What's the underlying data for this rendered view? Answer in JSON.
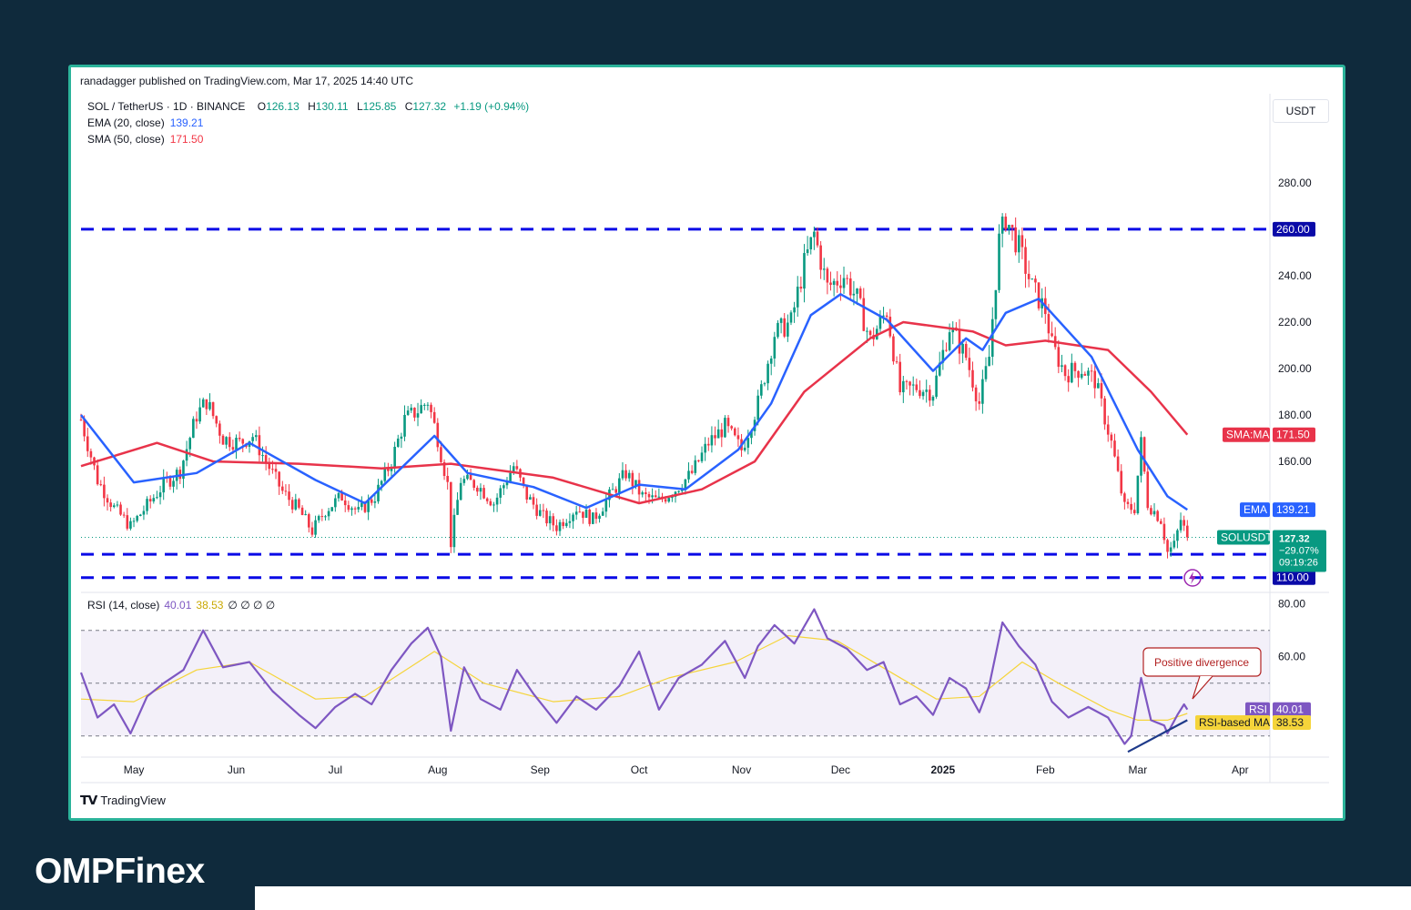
{
  "header": {
    "published": "ranadagger published on TradingView.com, Mar 17, 2025 14:40 UTC",
    "symbol": "SOL / TetherUS · 1D · BINANCE",
    "ohlc": {
      "o_label": "O",
      "o": "126.13",
      "h_label": "H",
      "h": "130.11",
      "l_label": "L",
      "l": "125.85",
      "c_label": "C",
      "c": "127.32",
      "change": "+1.19 (+0.94%)"
    },
    "ema_label": "EMA (20, close)",
    "ema_value": "139.21",
    "sma_label": "SMA (50, close)",
    "sma_value": "171.50",
    "currency": "USDT"
  },
  "rsi_legend": {
    "label": "RSI (14, close)",
    "rsi": "40.01",
    "ma": "38.53",
    "zeros": "∅ ∅ ∅ ∅"
  },
  "footer": {
    "tradingview": "TradingView",
    "brand": "OMPFinex"
  },
  "colors": {
    "up": "#089981",
    "down": "#f23645",
    "ema": "#2962ff",
    "sma": "#e8334a",
    "rsi": "#7e57c2",
    "rsi_ma": "#f5d43a",
    "level": "#0a0ae6",
    "frame": "#2bb39a",
    "background": "#0f2a3c"
  },
  "chart_data": [
    {
      "type": "candlestick",
      "title": "SOL / TetherUS · 1D · BINANCE",
      "x_labels": [
        "May",
        "Jun",
        "Jul",
        "Aug",
        "Sep",
        "Oct",
        "Nov",
        "Dec",
        "2025",
        "Feb",
        "Mar",
        "Apr"
      ],
      "x_range": [
        "2024-04-15",
        "2025-04-10"
      ],
      "y_ticks": [
        "280.00",
        "240.00",
        "220.00",
        "200.00",
        "180.00",
        "160.00"
      ],
      "ylim": [
        104,
        296
      ],
      "last_close": 127.32,
      "horizontal_levels": [
        {
          "value": 260,
          "label": "260.00"
        },
        {
          "value": 120,
          "label": "120.00"
        },
        {
          "value": 110,
          "label": "110.00"
        }
      ],
      "badges": {
        "sma": {
          "name": "SMA:MA",
          "value": "171.50"
        },
        "ema": {
          "name": "EMA",
          "value": "139.21"
        },
        "price": {
          "name": "SOLUSDT",
          "value": "127.32",
          "change": "−29.07%",
          "countdown": "09:19:26"
        }
      },
      "price_path": [
        [
          "2024-04-15",
          178
        ],
        [
          "2024-04-20",
          152
        ],
        [
          "2024-04-25",
          140
        ],
        [
          "2024-04-30",
          132
        ],
        [
          "2024-05-05",
          141
        ],
        [
          "2024-05-10",
          150
        ],
        [
          "2024-05-15",
          156
        ],
        [
          "2024-05-20",
          180
        ],
        [
          "2024-05-23",
          186
        ],
        [
          "2024-05-28",
          170
        ],
        [
          "2024-06-02",
          168
        ],
        [
          "2024-06-06",
          171
        ],
        [
          "2024-06-10",
          160
        ],
        [
          "2024-06-15",
          147
        ],
        [
          "2024-06-20",
          139
        ],
        [
          "2024-06-24",
          130
        ],
        [
          "2024-06-28",
          139
        ],
        [
          "2024-07-03",
          145
        ],
        [
          "2024-07-08",
          138
        ],
        [
          "2024-07-13",
          145
        ],
        [
          "2024-07-18",
          160
        ],
        [
          "2024-07-22",
          178
        ],
        [
          "2024-07-26",
          182
        ],
        [
          "2024-07-29",
          186
        ],
        [
          "2024-08-01",
          170
        ],
        [
          "2024-08-04",
          150
        ],
        [
          "2024-08-05",
          125
        ],
        [
          "2024-08-08",
          152
        ],
        [
          "2024-08-13",
          150
        ],
        [
          "2024-08-18",
          142
        ],
        [
          "2024-08-24",
          158
        ],
        [
          "2024-08-28",
          145
        ],
        [
          "2024-09-02",
          136
        ],
        [
          "2024-09-06",
          132
        ],
        [
          "2024-09-12",
          140
        ],
        [
          "2024-09-17",
          135
        ],
        [
          "2024-09-22",
          145
        ],
        [
          "2024-09-27",
          155
        ],
        [
          "2024-10-02",
          145
        ],
        [
          "2024-10-07",
          143
        ],
        [
          "2024-10-12",
          148
        ],
        [
          "2024-10-17",
          155
        ],
        [
          "2024-10-22",
          168
        ],
        [
          "2024-10-27",
          175
        ],
        [
          "2024-11-01",
          165
        ],
        [
          "2024-11-06",
          185
        ],
        [
          "2024-11-11",
          215
        ],
        [
          "2024-11-16",
          220
        ],
        [
          "2024-11-20",
          245
        ],
        [
          "2024-11-23",
          258
        ],
        [
          "2024-11-27",
          235
        ],
        [
          "2024-12-02",
          240
        ],
        [
          "2024-12-06",
          230
        ],
        [
          "2024-12-10",
          212
        ],
        [
          "2024-12-15",
          225
        ],
        [
          "2024-12-19",
          190
        ],
        [
          "2024-12-24",
          192
        ],
        [
          "2024-12-29",
          190
        ],
        [
          "2025-01-03",
          218
        ],
        [
          "2025-01-08",
          205
        ],
        [
          "2025-01-12",
          185
        ],
        [
          "2025-01-15",
          205
        ],
        [
          "2025-01-18",
          255
        ],
        [
          "2025-01-20",
          265
        ],
        [
          "2025-01-24",
          252
        ],
        [
          "2025-01-28",
          235
        ],
        [
          "2025-02-01",
          225
        ],
        [
          "2025-02-03",
          210
        ],
        [
          "2025-02-07",
          198
        ],
        [
          "2025-02-12",
          200
        ],
        [
          "2025-02-16",
          195
        ],
        [
          "2025-02-21",
          168
        ],
        [
          "2025-02-25",
          140
        ],
        [
          "2025-02-28",
          140
        ],
        [
          "2025-03-02",
          168
        ],
        [
          "2025-03-04",
          142
        ],
        [
          "2025-03-08",
          135
        ],
        [
          "2025-03-10",
          121
        ],
        [
          "2025-03-12",
          124
        ],
        [
          "2025-03-14",
          135
        ],
        [
          "2025-03-16",
          127.32
        ]
      ],
      "ema20_path": [
        [
          "2024-04-15",
          180
        ],
        [
          "2024-05-01",
          151
        ],
        [
          "2024-05-20",
          155
        ],
        [
          "2024-06-05",
          168
        ],
        [
          "2024-06-25",
          152
        ],
        [
          "2024-07-10",
          142
        ],
        [
          "2024-07-31",
          171
        ],
        [
          "2024-08-10",
          155
        ],
        [
          "2024-08-30",
          149
        ],
        [
          "2024-09-15",
          140
        ],
        [
          "2024-10-01",
          150
        ],
        [
          "2024-10-15",
          148
        ],
        [
          "2024-10-31",
          165
        ],
        [
          "2024-11-10",
          185
        ],
        [
          "2024-11-22",
          223
        ],
        [
          "2024-12-01",
          232
        ],
        [
          "2024-12-15",
          221
        ],
        [
          "2024-12-29",
          199
        ],
        [
          "2025-01-08",
          213
        ],
        [
          "2025-01-13",
          208
        ],
        [
          "2025-01-20",
          224
        ],
        [
          "2025-01-30",
          230
        ],
        [
          "2025-02-15",
          205
        ],
        [
          "2025-03-01",
          165
        ],
        [
          "2025-03-10",
          145
        ],
        [
          "2025-03-16",
          139.21
        ]
      ],
      "sma50_path": [
        [
          "2024-04-15",
          158
        ],
        [
          "2024-05-08",
          168
        ],
        [
          "2024-05-25",
          160
        ],
        [
          "2024-06-20",
          159
        ],
        [
          "2024-07-15",
          157
        ],
        [
          "2024-08-05",
          159
        ],
        [
          "2024-09-05",
          153
        ],
        [
          "2024-10-01",
          142
        ],
        [
          "2024-10-20",
          148
        ],
        [
          "2024-11-05",
          160
        ],
        [
          "2024-11-20",
          190
        ],
        [
          "2024-12-10",
          213
        ],
        [
          "2024-12-20",
          220
        ],
        [
          "2025-01-10",
          216
        ],
        [
          "2025-01-20",
          210
        ],
        [
          "2025-02-01",
          212
        ],
        [
          "2025-02-20",
          208
        ],
        [
          "2025-03-05",
          190
        ],
        [
          "2025-03-16",
          171.5
        ]
      ]
    },
    {
      "type": "line",
      "title": "RSI (14, close)",
      "ylim": [
        22,
        83
      ],
      "y_ticks": [
        "80.00",
        "60.00"
      ],
      "bands": {
        "upper": 70,
        "middle": 50,
        "lower": 30
      },
      "annotation": "Positive divergence",
      "badges": {
        "rsi": {
          "name": "RSI",
          "value": "40.01"
        },
        "ma": {
          "name": "RSI-based MA",
          "value": "38.53"
        }
      },
      "series": [
        {
          "name": "RSI",
          "points": [
            [
              "2024-04-15",
              54
            ],
            [
              "2024-04-20",
              37
            ],
            [
              "2024-04-25",
              42
            ],
            [
              "2024-04-30",
              31
            ],
            [
              "2024-05-05",
              45
            ],
            [
              "2024-05-10",
              50
            ],
            [
              "2024-05-16",
              55
            ],
            [
              "2024-05-22",
              70
            ],
            [
              "2024-05-28",
              56
            ],
            [
              "2024-06-05",
              58
            ],
            [
              "2024-06-12",
              47
            ],
            [
              "2024-06-20",
              38
            ],
            [
              "2024-06-25",
              33
            ],
            [
              "2024-07-01",
              41
            ],
            [
              "2024-07-07",
              46
            ],
            [
              "2024-07-12",
              42
            ],
            [
              "2024-07-18",
              55
            ],
            [
              "2024-07-24",
              65
            ],
            [
              "2024-07-29",
              71
            ],
            [
              "2024-08-02",
              60
            ],
            [
              "2024-08-05",
              32
            ],
            [
              "2024-08-09",
              56
            ],
            [
              "2024-08-14",
              44
            ],
            [
              "2024-08-20",
              40
            ],
            [
              "2024-08-25",
              55
            ],
            [
              "2024-08-30",
              46
            ],
            [
              "2024-09-06",
              35
            ],
            [
              "2024-09-12",
              45
            ],
            [
              "2024-09-18",
              40
            ],
            [
              "2024-09-25",
              49
            ],
            [
              "2024-10-01",
              62
            ],
            [
              "2024-10-07",
              40
            ],
            [
              "2024-10-13",
              52
            ],
            [
              "2024-10-20",
              57
            ],
            [
              "2024-10-27",
              66
            ],
            [
              "2024-11-02",
              52
            ],
            [
              "2024-11-06",
              64
            ],
            [
              "2024-11-11",
              72
            ],
            [
              "2024-11-17",
              65
            ],
            [
              "2024-11-23",
              78
            ],
            [
              "2024-11-27",
              67
            ],
            [
              "2024-12-03",
              63
            ],
            [
              "2024-12-09",
              55
            ],
            [
              "2024-12-14",
              58
            ],
            [
              "2024-12-19",
              42
            ],
            [
              "2024-12-24",
              45
            ],
            [
              "2024-12-29",
              38
            ],
            [
              "2025-01-03",
              52
            ],
            [
              "2025-01-08",
              48
            ],
            [
              "2025-01-12",
              39
            ],
            [
              "2025-01-15",
              49
            ],
            [
              "2025-01-19",
              73
            ],
            [
              "2025-01-24",
              64
            ],
            [
              "2025-01-29",
              57
            ],
            [
              "2025-02-03",
              43
            ],
            [
              "2025-02-08",
              37
            ],
            [
              "2025-02-14",
              41
            ],
            [
              "2025-02-20",
              37
            ],
            [
              "2025-02-25",
              27
            ],
            [
              "2025-02-27",
              30
            ],
            [
              "2025-03-02",
              52
            ],
            [
              "2025-03-05",
              36
            ],
            [
              "2025-03-09",
              34
            ],
            [
              "2025-03-10",
              31
            ],
            [
              "2025-03-13",
              38
            ],
            [
              "2025-03-15",
              42
            ],
            [
              "2025-03-16",
              40.01
            ]
          ]
        },
        {
          "name": "RSI-based MA",
          "points": [
            [
              "2024-04-15",
              44
            ],
            [
              "2024-05-01",
              43
            ],
            [
              "2024-05-20",
              55
            ],
            [
              "2024-06-05",
              58
            ],
            [
              "2024-06-25",
              44
            ],
            [
              "2024-07-10",
              45
            ],
            [
              "2024-07-31",
              62
            ],
            [
              "2024-08-15",
              50
            ],
            [
              "2024-09-05",
              43
            ],
            [
              "2024-09-25",
              45
            ],
            [
              "2024-10-10",
              52
            ],
            [
              "2024-10-30",
              58
            ],
            [
              "2024-11-15",
              68
            ],
            [
              "2024-11-30",
              66
            ],
            [
              "2024-12-15",
              55
            ],
            [
              "2024-12-30",
              44
            ],
            [
              "2025-01-12",
              45
            ],
            [
              "2025-01-25",
              58
            ],
            [
              "2025-02-05",
              50
            ],
            [
              "2025-02-20",
              40
            ],
            [
              "2025-03-01",
              36
            ],
            [
              "2025-03-10",
              36
            ],
            [
              "2025-03-16",
              38.53
            ]
          ]
        },
        {
          "name": "",
          "points": [
            [
              "2025-02-26",
              24
            ],
            [
              "2025-03-16",
              36
            ]
          ]
        }
      ]
    }
  ]
}
